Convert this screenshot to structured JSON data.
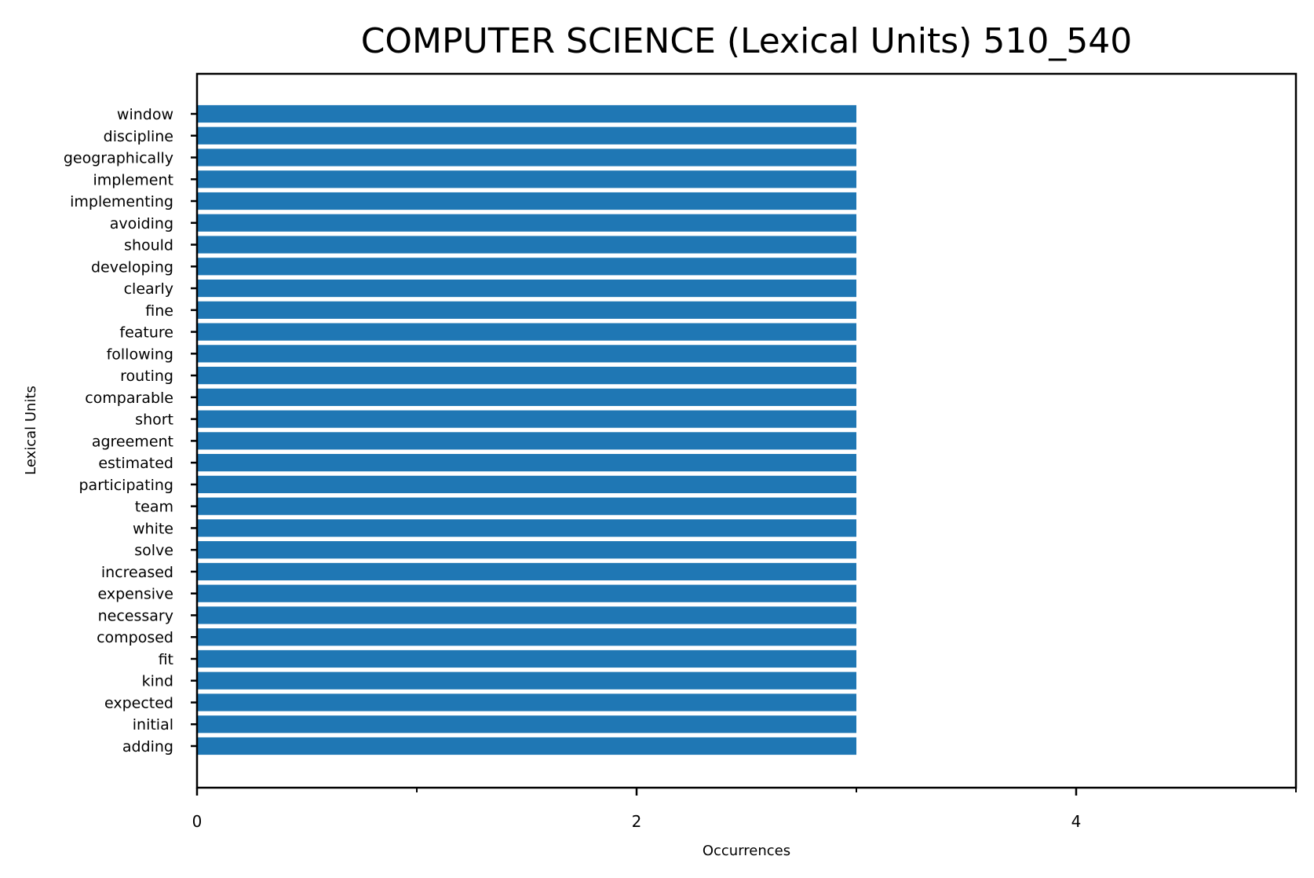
{
  "chart_data": {
    "type": "bar",
    "orientation": "horizontal",
    "title": "COMPUTER SCIENCE (Lexical Units) 510_540",
    "xlabel": "Occurrences",
    "ylabel": "Lexical Units",
    "xlim": [
      0,
      5
    ],
    "x_ticks": [
      0,
      2,
      4
    ],
    "x_minor_ticks": [
      1,
      3,
      5
    ],
    "grid": false,
    "bar_color": "#1f77b4",
    "categories": [
      "window",
      "discipline",
      "geographically",
      "implement",
      "implementing",
      "avoiding",
      "should",
      "developing",
      "clearly",
      "fine",
      "feature",
      "following",
      "routing",
      "comparable",
      "short",
      "agreement",
      "estimated",
      "participating",
      "team",
      "white",
      "solve",
      "increased",
      "expensive",
      "necessary",
      "composed",
      "fit",
      "kind",
      "expected",
      "initial",
      "adding"
    ],
    "values": [
      3,
      3,
      3,
      3,
      3,
      3,
      3,
      3,
      3,
      3,
      3,
      3,
      3,
      3,
      3,
      3,
      3,
      3,
      3,
      3,
      3,
      3,
      3,
      3,
      3,
      3,
      3,
      3,
      3,
      3
    ]
  }
}
